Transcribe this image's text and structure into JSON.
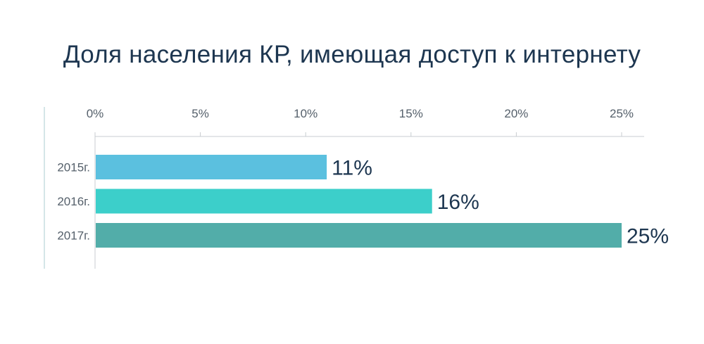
{
  "chart_data": {
    "type": "bar",
    "orientation": "horizontal",
    "title": "Доля населения КР, имеющая доступ к интернету",
    "categories": [
      "2015г.",
      "2016г.",
      "2017г."
    ],
    "values": [
      11,
      16,
      25
    ],
    "data_labels": [
      "11%",
      "16%",
      "25%"
    ],
    "bar_colors": [
      "#5bc0df",
      "#3ccfca",
      "#52ada9"
    ],
    "xlim": [
      0,
      25
    ],
    "x_ticks": [
      0,
      5,
      10,
      15,
      20,
      25
    ],
    "x_tick_labels": [
      "0%",
      "5%",
      "10%",
      "15%",
      "20%",
      "25%"
    ],
    "x_axis_position": "top",
    "grid": false,
    "legend": "none"
  }
}
